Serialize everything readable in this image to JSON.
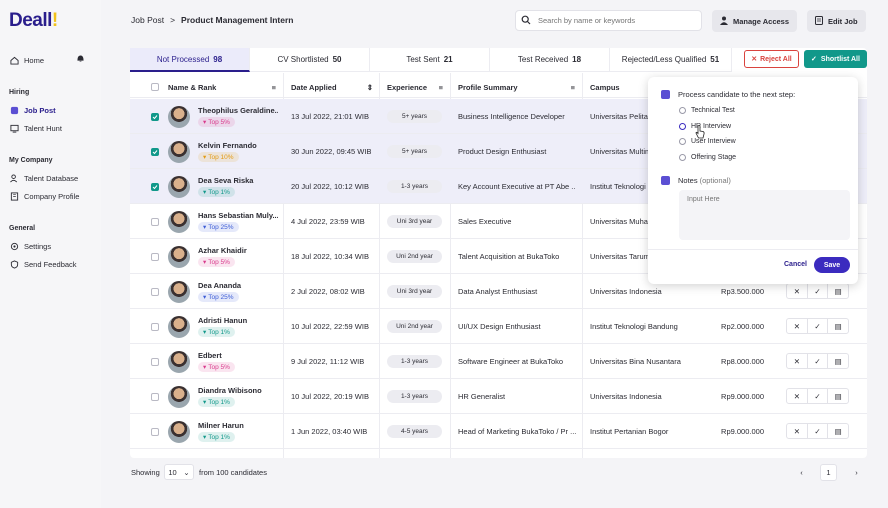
{
  "sidebar": {
    "logo_main": "Deall",
    "logo_accent": "!",
    "home": "Home",
    "section_hiring": "Hiring",
    "job_post": "Job Post",
    "talent_hunt": "Talent Hunt",
    "section_company": "My Company",
    "talent_database": "Talent Database",
    "company_profile": "Company Profile",
    "section_general": "General",
    "settings": "Settings",
    "send_feedback": "Send Feedback"
  },
  "header": {
    "breadcrumb_root": "Job Post",
    "breadcrumb_sep": ">",
    "breadcrumb_current": "Product Management Intern",
    "search_placeholder": "Search by name or keywords",
    "manage_access": "Manage Access",
    "edit_job": "Edit Job"
  },
  "tabs": [
    {
      "label": "Not Processed",
      "count": "98"
    },
    {
      "label": "CV Shortlisted",
      "count": "50"
    },
    {
      "label": "Test Sent",
      "count": "21"
    },
    {
      "label": "Test Received",
      "count": "18"
    },
    {
      "label": "Rejected/Less Qualified",
      "count": "51"
    }
  ],
  "actions": {
    "reject_all": "Reject All",
    "shortlist_all": "Shortlist All"
  },
  "columns": {
    "name_rank": "Name & Rank",
    "date_applied": "Date Applied",
    "experience": "Experience",
    "profile_summary": "Profile Summary",
    "campus": "Campus"
  },
  "rows": [
    {
      "name": "Theophilus Geraldine...",
      "rank": "Top 5%",
      "date": "13 Jul 2022, 21:01 WIB",
      "exp": "5+ years",
      "summary": "Business Intelligence Developer",
      "campus": "Universitas Pelita",
      "salary": "",
      "checked": true
    },
    {
      "name": "Kelvin Fernando",
      "rank": "Top 10%",
      "date": "30 Jun 2022, 09:45 WIB",
      "exp": "5+ years",
      "summary": "Product Design Enthusiast",
      "campus": "Universitas Multim",
      "salary": "",
      "checked": true
    },
    {
      "name": "Dea Seva Riska",
      "rank": "Top 1%",
      "date": "20 Jul 2022, 10:12 WIB",
      "exp": "1-3 years",
      "summary": "Key Account Executive at PT Abe ...",
      "campus": "Institut Teknologi",
      "salary": "",
      "checked": true
    },
    {
      "name": "Hans Sebastian Muly...",
      "rank": "Top 25%",
      "date": "4 Jul 2022, 23:59 WIB",
      "exp": "Uni 3rd year",
      "summary": "Sales Executive",
      "campus": "Universitas Muhar",
      "salary": "",
      "checked": false
    },
    {
      "name": "Azhar Khaidir",
      "rank": "Top 5%",
      "date": "18 Jul 2022, 10:34 WIB",
      "exp": "Uni 2nd year",
      "summary": "Talent Acquisition at BukaToko",
      "campus": "Universitas Tarum",
      "salary": "",
      "checked": false
    },
    {
      "name": "Dea Ananda",
      "rank": "Top 25%",
      "date": "2 Jul 2022, 08:02 WIB",
      "exp": "Uni 3rd year",
      "summary": "Data Analyst Enthusiast",
      "campus": "Universitas Indonesia",
      "salary": "Rp3.500.000",
      "checked": false
    },
    {
      "name": "Adristi Hanun",
      "rank": "Top 1%",
      "date": "10 Jul 2022, 22:59 WIB",
      "exp": "Uni 2nd year",
      "summary": "UI/UX Design Enthusiast",
      "campus": "Institut Teknologi Bandung",
      "salary": "Rp2.000.000",
      "checked": false
    },
    {
      "name": "Edbert",
      "rank": "Top 5%",
      "date": "9 Jul 2022, 11:12 WIB",
      "exp": "1-3 years",
      "summary": "Software Engineer at BukaToko",
      "campus": "Universitas Bina Nusantara",
      "salary": "Rp8.000.000",
      "checked": false
    },
    {
      "name": "Diandra Wibisono",
      "rank": "Top 1%",
      "date": "10 Jul 2022, 20:19 WIB",
      "exp": "1-3 years",
      "summary": "HR Generalist",
      "campus": "Universitas Indonesia",
      "salary": "Rp9.000.000",
      "checked": false
    },
    {
      "name": "Milner Harun",
      "rank": "Top 1%",
      "date": "1 Jun 2022, 03:40 WIB",
      "exp": "4-5 years",
      "summary": "Head of Marketing BukaToko / Pr ...",
      "campus": "Institut Pertanian Bogor",
      "salary": "Rp9.000.000",
      "checked": false
    }
  ],
  "rank_colors": {
    "Top 1%": "#11988a",
    "Top 5%": "#d93a8c",
    "Top 10%": "#e39a12",
    "Top 25%": "#3b5bd6"
  },
  "footer": {
    "showing": "Showing",
    "page_size": "10",
    "from_text": "from 100 candidates",
    "page": "1"
  },
  "popover": {
    "title": "Process candidate to the next step:",
    "options": [
      "Technical Test",
      "HR Interview",
      "User Interview",
      "Offering Stage"
    ],
    "notes_label": "Notes",
    "notes_optional": "(optional)",
    "notes_placeholder": "Input Here",
    "cancel": "Cancel",
    "save": "Save"
  }
}
